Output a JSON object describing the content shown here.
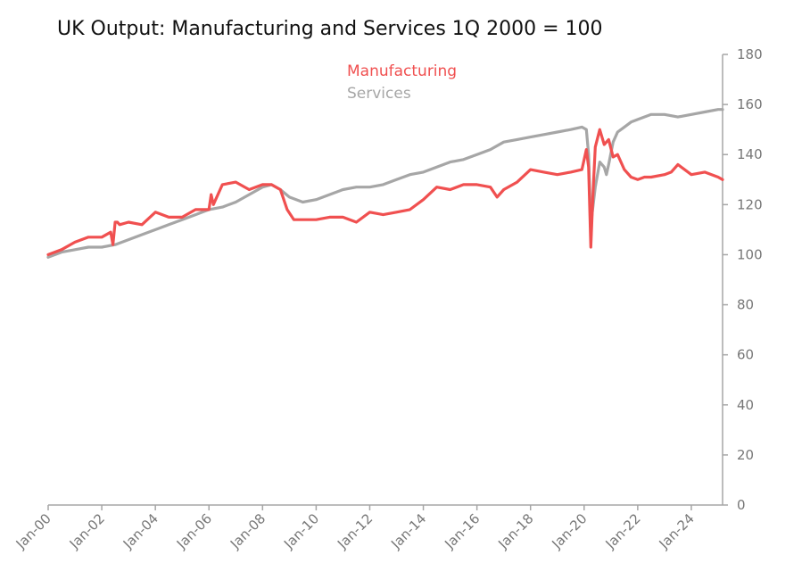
{
  "chart_data": {
    "type": "line",
    "title": "UK Output:  Manufacturing and Services 1Q 2000 = 100",
    "xlabel": "",
    "ylabel": "",
    "x_ticks": [
      "Jan-00",
      "Jan-02",
      "Jan-04",
      "Jan-06",
      "Jan-08",
      "Jan-10",
      "Jan-12",
      "Jan-14",
      "Jan-16",
      "Jan-18",
      "Jan-20",
      "Jan-22",
      "Jan-24"
    ],
    "y_ticks": [
      0,
      20,
      40,
      60,
      80,
      100,
      120,
      140,
      160,
      180
    ],
    "ylim": [
      0,
      180
    ],
    "xlim": [
      "2000-01",
      "2025-03"
    ],
    "y_axis_side": "right",
    "grid": false,
    "legend": "top-center",
    "colors": {
      "Manufacturing": "#f05050",
      "Services": "#a6a6a6"
    },
    "series": [
      {
        "name": "Manufacturing",
        "x": [
          "2000-01",
          "2000-07",
          "2001-01",
          "2001-07",
          "2002-01",
          "2002-05",
          "2002-06",
          "2002-07",
          "2002-08",
          "2002-09",
          "2003-01",
          "2003-07",
          "2004-01",
          "2004-07",
          "2005-01",
          "2005-07",
          "2006-01",
          "2006-02",
          "2006-03",
          "2006-07",
          "2007-01",
          "2007-07",
          "2008-01",
          "2008-05",
          "2008-09",
          "2008-12",
          "2009-03",
          "2009-07",
          "2010-01",
          "2010-07",
          "2011-01",
          "2011-07",
          "2012-01",
          "2012-07",
          "2013-01",
          "2013-07",
          "2014-01",
          "2014-07",
          "2015-01",
          "2015-07",
          "2016-01",
          "2016-07",
          "2016-10",
          "2017-01",
          "2017-07",
          "2018-01",
          "2018-07",
          "2019-01",
          "2019-07",
          "2019-12",
          "2020-02",
          "2020-03",
          "2020-04",
          "2020-05",
          "2020-06",
          "2020-08",
          "2020-10",
          "2020-12",
          "2021-02",
          "2021-04",
          "2021-07",
          "2021-10",
          "2022-01",
          "2022-04",
          "2022-07",
          "2023-01",
          "2023-04",
          "2023-07",
          "2024-01",
          "2024-07",
          "2025-01",
          "2025-03"
        ],
        "values": [
          100,
          102,
          105,
          107,
          107,
          109,
          104,
          113,
          113,
          112,
          113,
          112,
          117,
          115,
          115,
          118,
          118,
          124,
          120,
          128,
          129,
          126,
          128,
          128,
          126,
          118,
          114,
          114,
          114,
          115,
          115,
          113,
          117,
          116,
          117,
          118,
          122,
          127,
          126,
          128,
          128,
          127,
          123,
          126,
          129,
          134,
          133,
          132,
          133,
          134,
          142,
          135,
          103,
          125,
          143,
          150,
          144,
          146,
          139,
          140,
          134,
          131,
          130,
          131,
          131,
          132,
          133,
          136,
          132,
          133,
          131,
          130
        ]
      },
      {
        "name": "Services",
        "x": [
          "2000-01",
          "2000-07",
          "2001-01",
          "2001-07",
          "2002-01",
          "2002-07",
          "2003-01",
          "2003-07",
          "2004-01",
          "2004-07",
          "2005-01",
          "2005-07",
          "2006-01",
          "2006-07",
          "2007-01",
          "2007-07",
          "2008-01",
          "2008-05",
          "2008-09",
          "2009-01",
          "2009-07",
          "2010-01",
          "2010-07",
          "2011-01",
          "2011-07",
          "2012-01",
          "2012-07",
          "2013-01",
          "2013-07",
          "2014-01",
          "2014-07",
          "2015-01",
          "2015-07",
          "2016-01",
          "2016-07",
          "2017-01",
          "2017-07",
          "2018-01",
          "2018-07",
          "2019-01",
          "2019-07",
          "2019-12",
          "2020-02",
          "2020-03",
          "2020-04",
          "2020-06",
          "2020-08",
          "2020-10",
          "2020-11",
          "2020-12",
          "2021-02",
          "2021-04",
          "2021-07",
          "2021-10",
          "2022-01",
          "2022-07",
          "2023-01",
          "2023-07",
          "2024-01",
          "2024-07",
          "2025-01",
          "2025-03"
        ],
        "values": [
          99,
          101,
          102,
          103,
          103,
          104,
          106,
          108,
          110,
          112,
          114,
          116,
          118,
          119,
          121,
          124,
          127,
          128,
          126,
          123,
          121,
          122,
          124,
          126,
          127,
          127,
          128,
          130,
          132,
          133,
          135,
          137,
          138,
          140,
          142,
          145,
          146,
          147,
          148,
          149,
          150,
          151,
          150,
          140,
          112,
          127,
          137,
          135,
          132,
          136,
          145,
          149,
          151,
          153,
          154,
          156,
          156,
          155,
          156,
          157,
          158,
          158
        ]
      }
    ]
  }
}
